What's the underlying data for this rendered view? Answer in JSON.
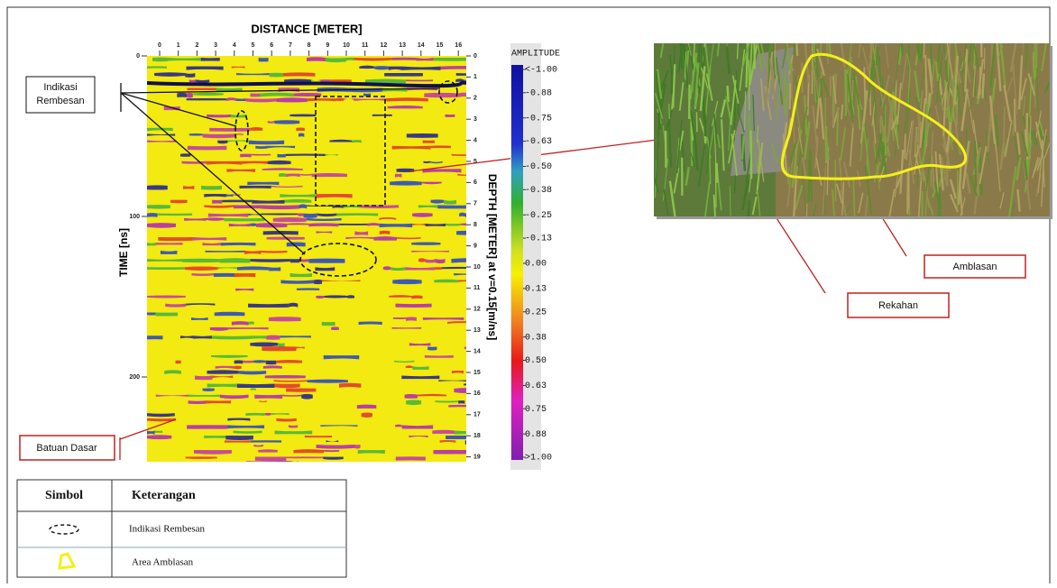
{
  "radargram": {
    "title": "DISTANCE [METER]",
    "x_ticks": [
      0,
      1,
      2,
      3,
      4,
      5,
      6,
      7,
      8,
      9,
      10,
      11,
      12,
      13,
      14,
      15,
      16
    ],
    "time_label": "TIME [ns]",
    "time_ticks": [
      0,
      100,
      200
    ],
    "depth_label": "DEPTH [METER] at v=0.15[m/ns]",
    "depth_ticks": [
      0,
      1,
      2,
      3,
      4,
      5,
      6,
      7,
      8,
      9,
      10,
      11,
      12,
      13,
      14,
      15,
      16,
      17,
      18,
      19
    ]
  },
  "colorbar": {
    "title": "AMPLITUDE",
    "ticks": [
      {
        "value": -1,
        "label": "<-1.00"
      },
      {
        "value": -0.88,
        "label": "-0.88"
      },
      {
        "value": -0.75,
        "label": "-0.75"
      },
      {
        "value": -0.63,
        "label": "-0.63"
      },
      {
        "value": -0.5,
        "label": "-0.50"
      },
      {
        "value": -0.38,
        "label": "-0.38"
      },
      {
        "value": -0.25,
        "label": "-0.25"
      },
      {
        "value": -0.13,
        "label": "-0.13"
      },
      {
        "value": 0,
        "label": "0.00"
      },
      {
        "value": 0.13,
        "label": "0.13"
      },
      {
        "value": 0.25,
        "label": "0.25"
      },
      {
        "value": 0.38,
        "label": "0.38"
      },
      {
        "value": 0.5,
        "label": "0.50"
      },
      {
        "value": 0.63,
        "label": "0.63"
      },
      {
        "value": 0.75,
        "label": "0.75"
      },
      {
        "value": 0.88,
        "label": "0.88"
      },
      {
        "value": 1,
        "label": ">1.00"
      }
    ]
  },
  "callouts": {
    "rembesan": [
      "Indikasi",
      "Rembesan"
    ],
    "batuan": "Batuan Dasar",
    "amblasan": "Amblasan",
    "rekahan": "Rekahan"
  },
  "legend": {
    "header": [
      "Simbol",
      "Keterangan"
    ],
    "rows": [
      "Indikasi Rembesan",
      "Area Amblasan"
    ]
  }
}
